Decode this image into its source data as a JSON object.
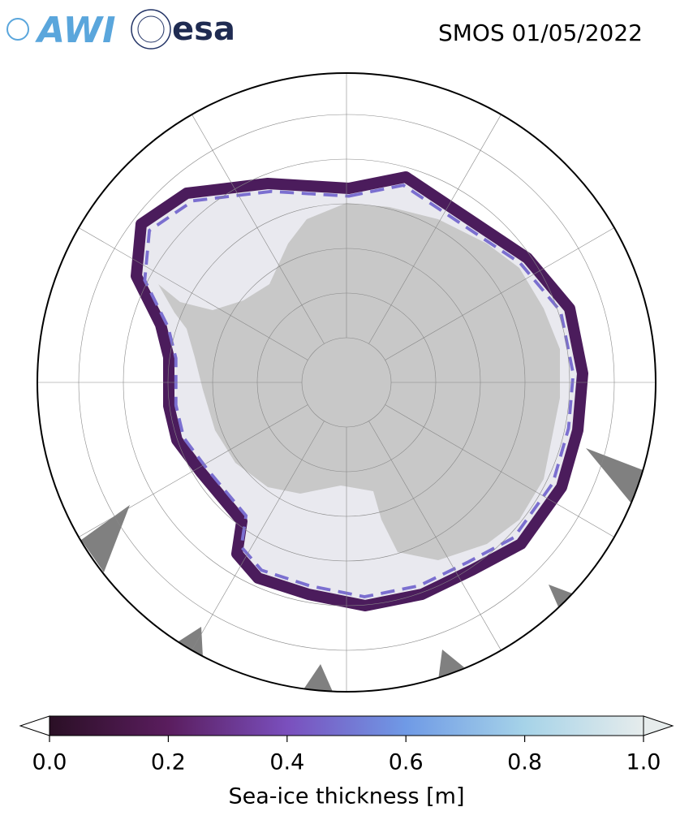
{
  "header": {
    "logos": [
      "AWI",
      "esa"
    ],
    "title": "SMOS 01/05/2022"
  },
  "colorbar": {
    "label": "Sea-ice thickness [m]",
    "lim": [
      0,
      1
    ],
    "ticks": [
      {
        "value": 0,
        "label": "0.0"
      },
      {
        "value": 0.2,
        "label": "0.2"
      },
      {
        "value": 0.4,
        "label": "0.4"
      },
      {
        "value": 0.6,
        "label": "0.6"
      },
      {
        "value": 0.8,
        "label": "0.8"
      },
      {
        "value": 1,
        "label": "1.0"
      }
    ],
    "colors": [
      "#2a0f25",
      "#5a1d5e",
      "#7a4fbd",
      "#6f9ae6",
      "#a6d3e8",
      "#e6ecec"
    ]
  }
}
